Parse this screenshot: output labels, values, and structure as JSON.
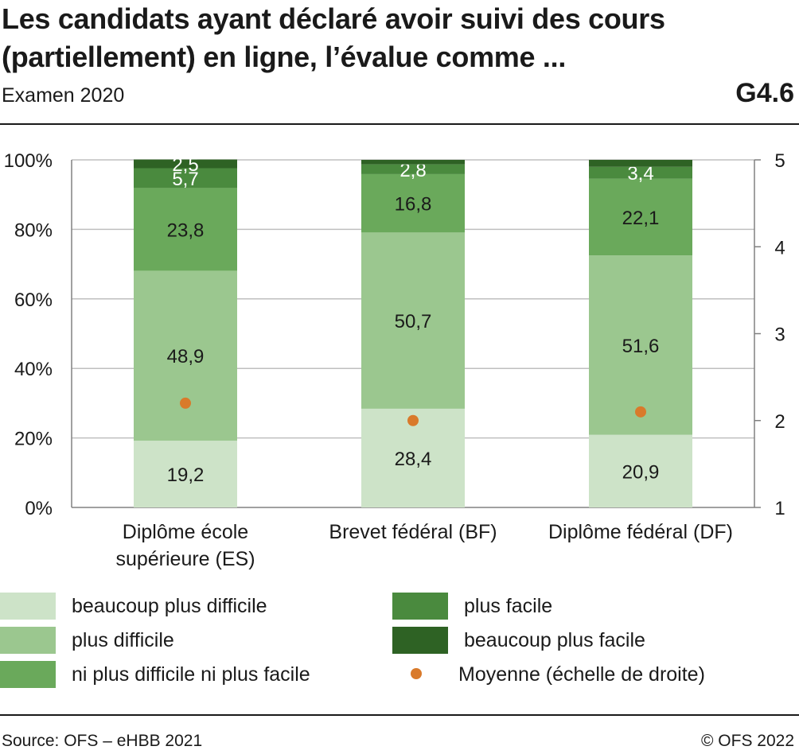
{
  "header": {
    "title_line1": "Les candidats ayant déclaré avoir suivi des cours",
    "title_line2": "(partiellement) en ligne, l’évalue comme ...",
    "subtitle": "Examen 2020",
    "code": "G4.6"
  },
  "footer": {
    "source": "Source: OFS – eHBB 2021",
    "copyright": "© OFS 2022"
  },
  "colors": {
    "beaucoup_plus_difficile": "#cde3c8",
    "plus_difficile": "#9bc78f",
    "ni_ni": "#6aa95b",
    "plus_facile": "#4a8a3e",
    "beaucoup_plus_facile": "#2e6224",
    "moyenne": "#d97a2b",
    "grid": "#bfbfbf",
    "axis": "#808080"
  },
  "chart_data": {
    "type": "bar",
    "stacked": true,
    "categories": [
      [
        "Diplôme école",
        "supérieure (ES)"
      ],
      [
        "Brevet fédéral (BF)"
      ],
      [
        "Diplôme fédéral (DF)"
      ]
    ],
    "series": [
      {
        "name": "beaucoup plus difficile",
        "values": [
          19.2,
          28.4,
          20.9
        ],
        "labels": [
          "19,2",
          "28,4",
          "20,9"
        ]
      },
      {
        "name": "plus difficile",
        "values": [
          48.9,
          50.7,
          51.6
        ],
        "labels": [
          "48,9",
          "50,7",
          "51,6"
        ]
      },
      {
        "name": "ni plus difficile ni plus facile",
        "values": [
          23.8,
          16.8,
          22.1
        ],
        "labels": [
          "23,8",
          "16,8",
          "22,1"
        ]
      },
      {
        "name": "plus facile",
        "values": [
          5.7,
          2.8,
          3.4
        ],
        "labels": [
          "5,7",
          "2,8",
          "3,4"
        ]
      },
      {
        "name": "beaucoup plus facile",
        "values": [
          2.5,
          1.3,
          2.0
        ],
        "labels": [
          "2,5",
          "",
          ""
        ]
      }
    ],
    "mean": {
      "name": "Moyenne  (échelle de droite)",
      "values": [
        2.2,
        2.0,
        2.1
      ]
    },
    "ylim": [
      0,
      100
    ],
    "y_ticks": [
      "0%",
      "20%",
      "40%",
      "60%",
      "80%",
      "100%"
    ],
    "y2lim": [
      1,
      5
    ],
    "y2_ticks": [
      "1",
      "2",
      "3",
      "4",
      "5"
    ],
    "grid": true,
    "legend_position": "bottom"
  }
}
